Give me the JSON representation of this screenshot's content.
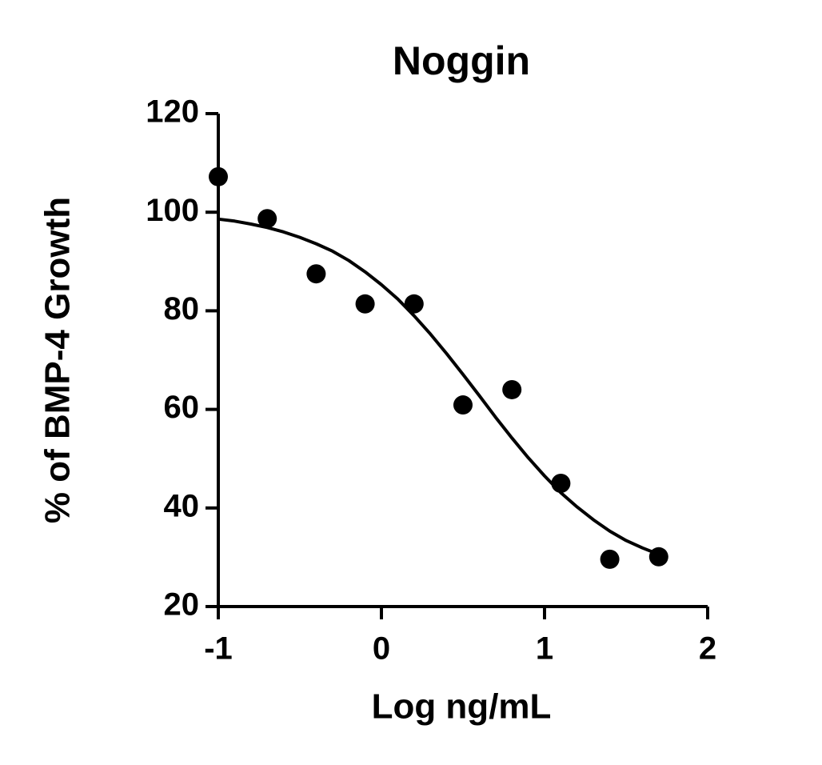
{
  "chart_data": {
    "type": "scatter",
    "title": "Noggin",
    "x_label": "Log ng/mL",
    "y_label": "% of BMP-4 Growth",
    "color": "#000000",
    "x": [
      -1,
      -0.7,
      -0.4,
      -0.1,
      0.2,
      0.5,
      0.8,
      1.1,
      1.4,
      1.7
    ],
    "values": [
      107.2,
      98.7,
      87.5,
      81.4,
      81.4,
      60.9,
      64,
      45,
      29.6,
      30.1
    ],
    "fit": {
      "x": [
        -1,
        -0.9,
        -0.8,
        -0.7,
        -0.6,
        -0.5,
        -0.4,
        -0.3,
        -0.2,
        -0.1,
        0,
        0.1,
        0.2,
        0.3,
        0.4,
        0.5,
        0.6,
        0.7,
        0.8,
        0.9,
        1,
        1.1,
        1.2,
        1.3,
        1.4,
        1.5,
        1.6,
        1.7
      ],
      "values": [
        98.6,
        98.2,
        97.6,
        96.9,
        96.0,
        94.9,
        93.6,
        92.1,
        90.2,
        87.9,
        85.3,
        82.4,
        79.0,
        75.3,
        71.3,
        67.1,
        62.8,
        58.4,
        54.2,
        50.2,
        46.5,
        43.1,
        40.2,
        37.6,
        35.3,
        33.4,
        31.9,
        30.6
      ]
    },
    "xlim": [
      -1,
      2
    ],
    "xticks": [
      -1,
      0,
      1,
      2
    ],
    "ylim": [
      20,
      120
    ],
    "yticks": [
      20,
      40,
      60,
      80,
      100,
      120
    ]
  }
}
